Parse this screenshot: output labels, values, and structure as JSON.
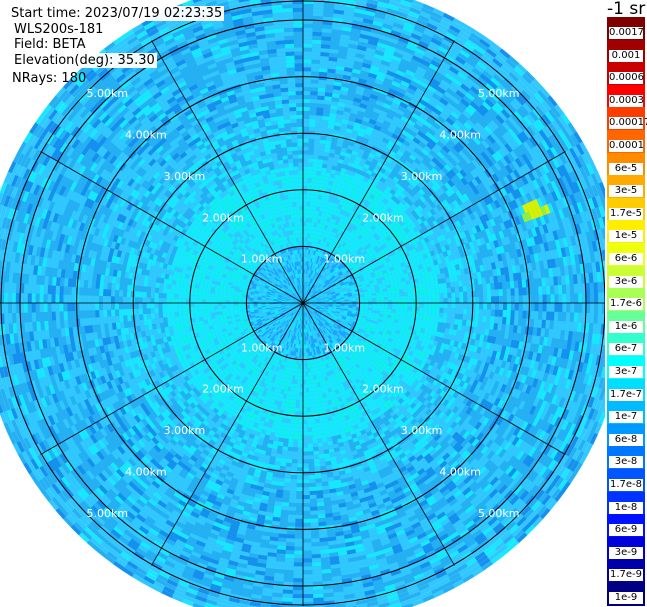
{
  "header": {
    "start_time": "Start time: 2023/07/19 02:23:35",
    "instrument": "WLS200s-181",
    "field": "Field: BETA",
    "elevation": "Elevation(deg): 35.30",
    "nrays": "NRays: 180"
  },
  "colorbar": {
    "unit": "-1 sr",
    "labels": [
      "0.0017",
      "0.001",
      "0.0006",
      "0.0003",
      "0.00017",
      "0.0001",
      "6e-5",
      "3e-5",
      "1.7e-5",
      "1e-5",
      "6e-6",
      "3e-6",
      "1.7e-6",
      "1e-6",
      "6e-7",
      "3e-7",
      "1.7e-7",
      "1e-7",
      "6e-8",
      "3e-8",
      "1.7e-8",
      "1e-8",
      "6e-9",
      "3e-9",
      "1.7e-9",
      "1e-9"
    ],
    "colors": [
      "#800000",
      "#a00000",
      "#c80000",
      "#ff0000",
      "#ff3c00",
      "#ff6600",
      "#ff8c00",
      "#ffaa00",
      "#ffcc00",
      "#ffee00",
      "#eeff10",
      "#ccff33",
      "#aaff55",
      "#66ff99",
      "#33ffcc",
      "#00ffff",
      "#00ddff",
      "#00bbff",
      "#0099ff",
      "#0077ff",
      "#0055ff",
      "#0033ff",
      "#0011ff",
      "#0000dd",
      "#0000aa",
      "#000080"
    ]
  },
  "ppi": {
    "ring_labels": [
      "1.00km",
      "2.00km",
      "3.00km",
      "4.00km",
      "5.00km"
    ],
    "ring_km": [
      1,
      2,
      3,
      4,
      5
    ],
    "max_range_km": 5.7,
    "elevation_deg": 35.3,
    "spoke_bearings_deg": [
      0,
      30,
      60,
      90,
      120,
      150,
      180,
      210,
      240,
      270,
      300,
      330
    ],
    "field_colors": {
      "near": "#1ea4ff",
      "mid": "#18e8ff",
      "mid_alt": "#0ff0e8",
      "far": "#24b0f2",
      "far_alt": "#30c8ff",
      "edge": "#1690ee",
      "hot": "#d8f000",
      "hot_alt": "#90f040",
      "grid": "#000000"
    }
  }
}
